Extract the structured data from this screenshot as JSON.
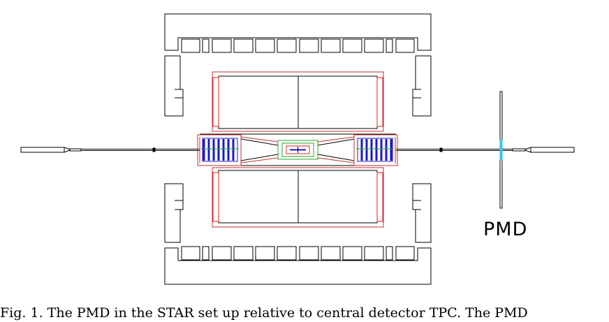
{
  "figure": {
    "detector_label": "PMD",
    "caption": "Fig. 1. The PMD in the STAR set up relative to central detector TPC. The PMD"
  },
  "colors": {
    "outline": "#000000",
    "tpc_frame": "#c03030",
    "red_detail": "#e02020",
    "blue_detail": "#1a1acc",
    "green_detail": "#22aa22",
    "pmd_highlight": "#33c6e0"
  }
}
